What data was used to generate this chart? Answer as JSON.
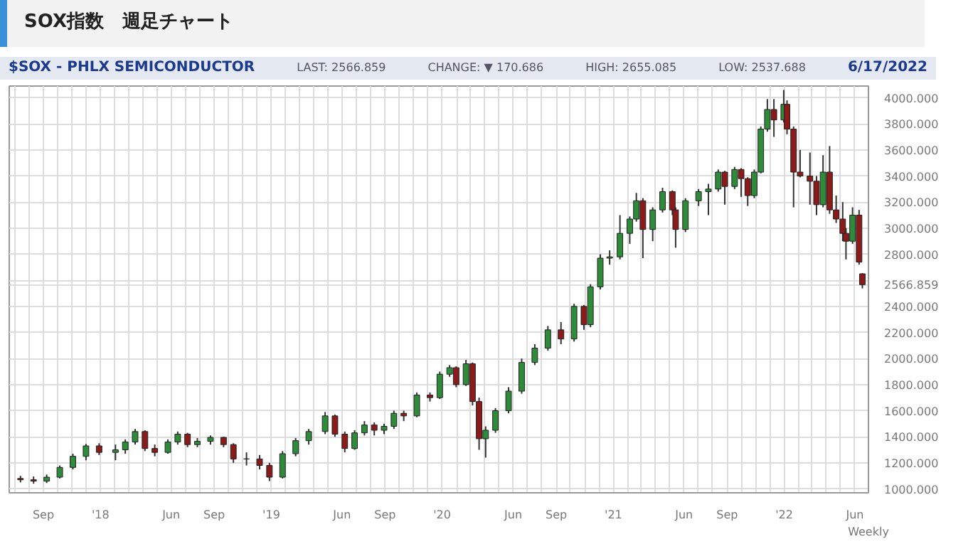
{
  "chart_data": {
    "type": "candlestick",
    "title": "SOX指数　週足チャート",
    "subtitle": "$SOX - PHLX SEMICONDUCTOR",
    "annotations": [
      "LAST: 2566.859",
      "CHANGE: ▼ 170.686",
      "HIGH: 2655.085",
      "LOW: 2537.688",
      "6/17/2022",
      "Weekly"
    ],
    "x": [
      "2017-07-14",
      "2017-08-11",
      "2017-09-08",
      "2017-10-06",
      "2017-11-03",
      "2017-12-01",
      "2017-12-29",
      "2018-02-02",
      "2018-02-23",
      "2018-03-16",
      "2018-04-06",
      "2018-04-27",
      "2018-05-25",
      "2018-06-15",
      "2018-07-06",
      "2018-07-27",
      "2018-08-24",
      "2018-09-21",
      "2018-10-12",
      "2018-11-09",
      "2018-12-07",
      "2018-12-28",
      "2019-01-25",
      "2019-02-22",
      "2019-03-22",
      "2019-04-26",
      "2019-05-17",
      "2019-06-07",
      "2019-06-28",
      "2019-07-19",
      "2019-08-09",
      "2019-08-30",
      "2019-09-20",
      "2019-10-11",
      "2019-11-08",
      "2019-12-06",
      "2019-12-27",
      "2020-01-17",
      "2020-01-31",
      "2020-02-21",
      "2020-03-06",
      "2020-03-20",
      "2020-04-03",
      "2020-04-24",
      "2020-05-22",
      "2020-06-19",
      "2020-07-17",
      "2020-08-14",
      "2020-09-11",
      "2020-10-09",
      "2020-10-30",
      "2020-11-13",
      "2020-12-04",
      "2020-12-24",
      "2021-01-15",
      "2021-02-05",
      "2021-02-19",
      "2021-03-05",
      "2021-03-26",
      "2021-04-16",
      "2021-05-07",
      "2021-05-14",
      "2021-06-04",
      "2021-07-02",
      "2021-07-23",
      "2021-08-13",
      "2021-08-27",
      "2021-09-17",
      "2021-10-01",
      "2021-10-15",
      "2021-10-29",
      "2021-11-12",
      "2021-11-26",
      "2021-12-10",
      "2021-12-31",
      "2022-01-07",
      "2022-01-21",
      "2022-02-04",
      "2022-02-25",
      "2022-03-11",
      "2022-03-25",
      "2022-04-08",
      "2022-04-22",
      "2022-05-06",
      "2022-05-13",
      "2022-05-27",
      "2022-06-10",
      "2022-06-17"
    ],
    "ohlc": [
      [
        1080,
        1100,
        1050,
        1070
      ],
      [
        1070,
        1095,
        1040,
        1060
      ],
      [
        1060,
        1110,
        1045,
        1090
      ],
      [
        1090,
        1180,
        1080,
        1165
      ],
      [
        1165,
        1270,
        1150,
        1250
      ],
      [
        1250,
        1345,
        1220,
        1330
      ],
      [
        1330,
        1350,
        1260,
        1280
      ],
      [
        1280,
        1340,
        1220,
        1300
      ],
      [
        1300,
        1380,
        1270,
        1360
      ],
      [
        1360,
        1460,
        1340,
        1440
      ],
      [
        1440,
        1450,
        1290,
        1310
      ],
      [
        1310,
        1340,
        1250,
        1280
      ],
      [
        1280,
        1380,
        1270,
        1360
      ],
      [
        1360,
        1440,
        1340,
        1420
      ],
      [
        1420,
        1430,
        1320,
        1340
      ],
      [
        1340,
        1390,
        1320,
        1365
      ],
      [
        1365,
        1410,
        1340,
        1395
      ],
      [
        1395,
        1400,
        1320,
        1340
      ],
      [
        1340,
        1350,
        1200,
        1230
      ],
      [
        1230,
        1280,
        1180,
        1230
      ],
      [
        1230,
        1260,
        1150,
        1180
      ],
      [
        1180,
        1200,
        1060,
        1090
      ],
      [
        1090,
        1290,
        1080,
        1270
      ],
      [
        1270,
        1390,
        1250,
        1370
      ],
      [
        1370,
        1460,
        1340,
        1440
      ],
      [
        1440,
        1590,
        1420,
        1560
      ],
      [
        1560,
        1570,
        1400,
        1420
      ],
      [
        1420,
        1440,
        1280,
        1310
      ],
      [
        1310,
        1450,
        1300,
        1430
      ],
      [
        1430,
        1520,
        1410,
        1490
      ],
      [
        1490,
        1510,
        1410,
        1450
      ],
      [
        1450,
        1500,
        1420,
        1480
      ],
      [
        1480,
        1600,
        1460,
        1580
      ],
      [
        1580,
        1600,
        1520,
        1560
      ],
      [
        1560,
        1740,
        1550,
        1720
      ],
      [
        1720,
        1740,
        1670,
        1700
      ],
      [
        1700,
        1900,
        1690,
        1880
      ],
      [
        1880,
        1950,
        1860,
        1930
      ],
      [
        1930,
        1940,
        1780,
        1800
      ],
      [
        1800,
        1990,
        1790,
        1960
      ],
      [
        1960,
        1970,
        1640,
        1670
      ],
      [
        1670,
        1700,
        1300,
        1385
      ],
      [
        1385,
        1480,
        1240,
        1450
      ],
      [
        1450,
        1620,
        1430,
        1600
      ],
      [
        1600,
        1780,
        1580,
        1750
      ],
      [
        1750,
        2000,
        1730,
        1970
      ],
      [
        1970,
        2110,
        1950,
        2080
      ],
      [
        2080,
        2250,
        2060,
        2220
      ],
      [
        2220,
        2280,
        2110,
        2150
      ],
      [
        2150,
        2420,
        2130,
        2400
      ],
      [
        2400,
        2410,
        2220,
        2260
      ],
      [
        2260,
        2570,
        2240,
        2550
      ],
      [
        2550,
        2800,
        2530,
        2770
      ],
      [
        2770,
        2830,
        2720,
        2780
      ],
      [
        2780,
        3100,
        2760,
        2960
      ],
      [
        2960,
        3090,
        2880,
        3070
      ],
      [
        3070,
        3270,
        3050,
        3210
      ],
      [
        3210,
        3230,
        2770,
        2990
      ],
      [
        2990,
        3160,
        2900,
        3140
      ],
      [
        3140,
        3310,
        3120,
        3280
      ],
      [
        3280,
        3290,
        3100,
        3140
      ],
      [
        3140,
        3160,
        2850,
        2990
      ],
      [
        2990,
        3230,
        2970,
        3210
      ],
      [
        3210,
        3300,
        3170,
        3280
      ],
      [
        3280,
        3340,
        3100,
        3300
      ],
      [
        3300,
        3450,
        3280,
        3430
      ],
      [
        3430,
        3440,
        3180,
        3320
      ],
      [
        3320,
        3470,
        3300,
        3450
      ],
      [
        3450,
        3460,
        3240,
        3380
      ],
      [
        3380,
        3390,
        3170,
        3250
      ],
      [
        3250,
        3450,
        3230,
        3430
      ],
      [
        3430,
        3780,
        3420,
        3760
      ],
      [
        3760,
        3990,
        3740,
        3910
      ],
      [
        3910,
        3990,
        3700,
        3830
      ],
      [
        3830,
        4060,
        3810,
        3950
      ],
      [
        3950,
        3980,
        3720,
        3760
      ],
      [
        3760,
        3780,
        3160,
        3430
      ],
      [
        3430,
        3600,
        3390,
        3400
      ],
      [
        3400,
        3580,
        3180,
        3360
      ],
      [
        3360,
        3400,
        3100,
        3180
      ],
      [
        3180,
        3560,
        3160,
        3430
      ],
      [
        3430,
        3630,
        3110,
        3140
      ],
      [
        3140,
        3250,
        3040,
        3070
      ],
      [
        3070,
        3200,
        2900,
        2960
      ],
      [
        2960,
        3000,
        2760,
        2900
      ],
      [
        2900,
        3160,
        2880,
        3100
      ],
      [
        3100,
        3140,
        2720,
        2740
      ],
      [
        2650,
        2655.085,
        2537.688,
        2566.859
      ]
    ],
    "xlim": [
      "2017-06-20",
      "2022-06-30"
    ],
    "xticks": [
      {
        "value": "2017-07-01",
        "label": null
      },
      {
        "value": "2017-08-01",
        "label": null
      },
      {
        "value": "2017-09-01",
        "label": "Sep"
      },
      {
        "value": "2017-10-01",
        "label": null
      },
      {
        "value": "2017-11-01",
        "label": null
      },
      {
        "value": "2017-12-01",
        "label": null
      },
      {
        "value": "2018-01-01",
        "label": "'18"
      },
      {
        "value": "2018-02-01",
        "label": null
      },
      {
        "value": "2018-03-01",
        "label": null
      },
      {
        "value": "2018-04-01",
        "label": null
      },
      {
        "value": "2018-05-01",
        "label": null
      },
      {
        "value": "2018-06-01",
        "label": "Jun"
      },
      {
        "value": "2018-07-01",
        "label": null
      },
      {
        "value": "2018-08-01",
        "label": null
      },
      {
        "value": "2018-09-01",
        "label": "Sep"
      },
      {
        "value": "2018-10-01",
        "label": null
      },
      {
        "value": "2018-11-01",
        "label": null
      },
      {
        "value": "2018-12-01",
        "label": null
      },
      {
        "value": "2019-01-01",
        "label": "'19"
      },
      {
        "value": "2019-02-01",
        "label": null
      },
      {
        "value": "2019-03-01",
        "label": null
      },
      {
        "value": "2019-04-01",
        "label": null
      },
      {
        "value": "2019-05-01",
        "label": null
      },
      {
        "value": "2019-06-01",
        "label": "Jun"
      },
      {
        "value": "2019-07-01",
        "label": null
      },
      {
        "value": "2019-08-01",
        "label": null
      },
      {
        "value": "2019-09-01",
        "label": "Sep"
      },
      {
        "value": "2019-10-01",
        "label": null
      },
      {
        "value": "2019-11-01",
        "label": null
      },
      {
        "value": "2019-12-01",
        "label": null
      },
      {
        "value": "2020-01-01",
        "label": "'20"
      },
      {
        "value": "2020-02-01",
        "label": null
      },
      {
        "value": "2020-03-01",
        "label": null
      },
      {
        "value": "2020-04-01",
        "label": null
      },
      {
        "value": "2020-05-01",
        "label": null
      },
      {
        "value": "2020-06-01",
        "label": "Jun"
      },
      {
        "value": "2020-07-01",
        "label": null
      },
      {
        "value": "2020-08-01",
        "label": null
      },
      {
        "value": "2020-09-01",
        "label": "Sep"
      },
      {
        "value": "2020-10-01",
        "label": null
      },
      {
        "value": "2020-11-01",
        "label": null
      },
      {
        "value": "2020-12-01",
        "label": null
      },
      {
        "value": "2021-01-01",
        "label": "'21"
      },
      {
        "value": "2021-02-01",
        "label": null
      },
      {
        "value": "2021-03-01",
        "label": null
      },
      {
        "value": "2021-04-01",
        "label": null
      },
      {
        "value": "2021-05-01",
        "label": null
      },
      {
        "value": "2021-06-01",
        "label": "Jun"
      },
      {
        "value": "2021-07-01",
        "label": null
      },
      {
        "value": "2021-08-01",
        "label": null
      },
      {
        "value": "2021-09-01",
        "label": "Sep"
      },
      {
        "value": "2021-10-01",
        "label": null
      },
      {
        "value": "2021-11-01",
        "label": null
      },
      {
        "value": "2021-12-01",
        "label": null
      },
      {
        "value": "2022-01-01",
        "label": "'22"
      },
      {
        "value": "2022-02-01",
        "label": null
      },
      {
        "value": "2022-03-01",
        "label": null
      },
      {
        "value": "2022-04-01",
        "label": null
      },
      {
        "value": "2022-05-01",
        "label": null
      },
      {
        "value": "2022-06-01",
        "label": "Jun"
      }
    ],
    "ylim": [
      970,
      4090
    ],
    "yticks": [
      {
        "value": 1000,
        "label": "1000.000"
      },
      {
        "value": 1200,
        "label": "1200.000"
      },
      {
        "value": 1400,
        "label": "1400.000"
      },
      {
        "value": 1600,
        "label": "1600.000"
      },
      {
        "value": 1800,
        "label": "1800.000"
      },
      {
        "value": 2000,
        "label": "2000.000"
      },
      {
        "value": 2200,
        "label": "2200.000"
      },
      {
        "value": 2400,
        "label": "2400.000"
      },
      {
        "value": 2566.859,
        "label": "2566.859"
      },
      {
        "value": 2600,
        "label": null
      },
      {
        "value": 2800,
        "label": "2800.000"
      },
      {
        "value": 3000,
        "label": "3000.000"
      },
      {
        "value": 3200,
        "label": "3200.000"
      },
      {
        "value": 3400,
        "label": "3400.000"
      },
      {
        "value": 3600,
        "label": "3600.000"
      },
      {
        "value": 3800,
        "label": "3800.000"
      },
      {
        "value": 4000,
        "label": "4000.000"
      }
    ],
    "grid": true
  }
}
